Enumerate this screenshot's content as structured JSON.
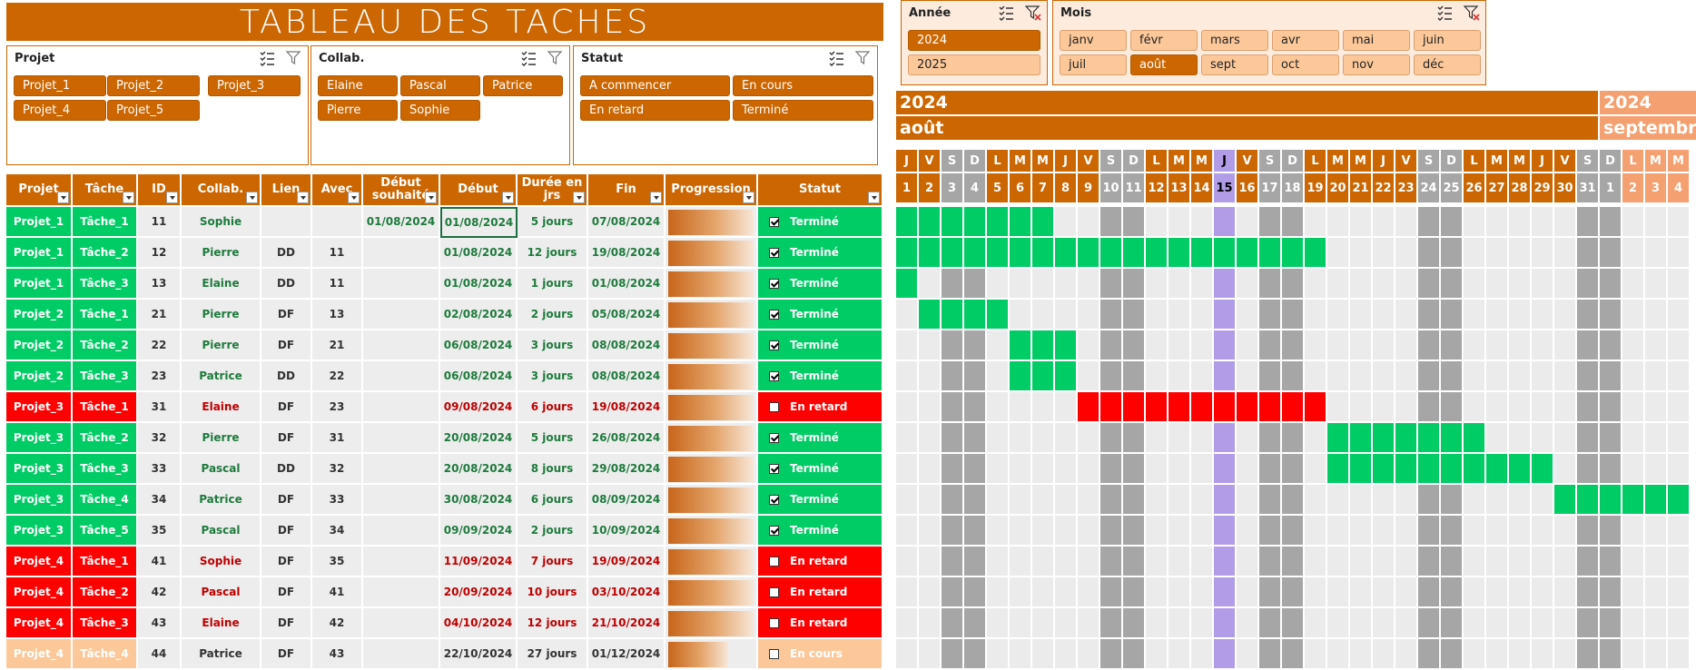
{
  "title": "TABLEAU  DES  TACHES",
  "slicers": {
    "projet": {
      "label": "Projet",
      "items": [
        "Projet_1",
        "Projet_2",
        "Projet_3",
        "Projet_4",
        "Projet_5"
      ]
    },
    "collab": {
      "label": "Collab.",
      "items": [
        "Elaine",
        "Pascal",
        "Patrice",
        "Pierre",
        "Sophie"
      ]
    },
    "statut": {
      "label": "Statut",
      "items": [
        "A commencer",
        "En cours",
        "En retard",
        "Terminé"
      ]
    },
    "annee": {
      "label": "Année",
      "items": [
        "2024",
        "2025"
      ],
      "selected": "2024"
    },
    "mois": {
      "label": "Mois",
      "items": [
        "janv",
        "févr",
        "mars",
        "avr",
        "mai",
        "juin",
        "juil",
        "août",
        "sept",
        "oct",
        "nov",
        "déc"
      ],
      "selected": "août"
    }
  },
  "table": {
    "headers": {
      "projet": "Projet",
      "tache": "Tâche",
      "id": "ID",
      "collab": "Collab.",
      "lien": "Lien",
      "avec": "Avec",
      "debut_souhaite": "Début souhaité",
      "debut": "Début",
      "duree": "Durée en jrs",
      "fin": "Fin",
      "progression": "Progression",
      "statut": "Statut"
    },
    "rows": [
      {
        "projet": "Projet_1",
        "tache": "Tâche_1",
        "id": "11",
        "collab": "Sophie",
        "lien": "",
        "avec": "",
        "debut_souhaite": "01/08/2024",
        "debut": "01/08/2024",
        "duree": "5 jours",
        "fin": "07/08/2024",
        "progress": 1.0,
        "done": true,
        "statut": "Terminé",
        "kind": "ok"
      },
      {
        "projet": "Projet_1",
        "tache": "Tâche_2",
        "id": "12",
        "collab": "Pierre",
        "lien": "DD",
        "avec": "11",
        "debut_souhaite": "",
        "debut": "01/08/2024",
        "duree": "12 jours",
        "fin": "19/08/2024",
        "progress": 1.0,
        "done": true,
        "statut": "Terminé",
        "kind": "ok"
      },
      {
        "projet": "Projet_1",
        "tache": "Tâche_3",
        "id": "13",
        "collab": "Elaine",
        "lien": "DD",
        "avec": "11",
        "debut_souhaite": "",
        "debut": "01/08/2024",
        "duree": "1 jours",
        "fin": "01/08/2024",
        "progress": 1.0,
        "done": true,
        "statut": "Terminé",
        "kind": "ok"
      },
      {
        "projet": "Projet_2",
        "tache": "Tâche_1",
        "id": "21",
        "collab": "Pierre",
        "lien": "DF",
        "avec": "13",
        "debut_souhaite": "",
        "debut": "02/08/2024",
        "duree": "2 jours",
        "fin": "05/08/2024",
        "progress": 1.0,
        "done": true,
        "statut": "Terminé",
        "kind": "ok"
      },
      {
        "projet": "Projet_2",
        "tache": "Tâche_2",
        "id": "22",
        "collab": "Pierre",
        "lien": "DF",
        "avec": "21",
        "debut_souhaite": "",
        "debut": "06/08/2024",
        "duree": "3 jours",
        "fin": "08/08/2024",
        "progress": 1.0,
        "done": true,
        "statut": "Terminé",
        "kind": "ok"
      },
      {
        "projet": "Projet_2",
        "tache": "Tâche_3",
        "id": "23",
        "collab": "Patrice",
        "lien": "DD",
        "avec": "22",
        "debut_souhaite": "",
        "debut": "06/08/2024",
        "duree": "3 jours",
        "fin": "08/08/2024",
        "progress": 1.0,
        "done": true,
        "statut": "Terminé",
        "kind": "ok"
      },
      {
        "projet": "Projet_3",
        "tache": "Tâche_1",
        "id": "31",
        "collab": "Elaine",
        "lien": "DF",
        "avec": "23",
        "debut_souhaite": "",
        "debut": "09/08/2024",
        "duree": "6 jours",
        "fin": "19/08/2024",
        "progress": 1.0,
        "done": false,
        "statut": "En retard",
        "kind": "late"
      },
      {
        "projet": "Projet_3",
        "tache": "Tâche_2",
        "id": "32",
        "collab": "Pierre",
        "lien": "DF",
        "avec": "31",
        "debut_souhaite": "",
        "debut": "20/08/2024",
        "duree": "5 jours",
        "fin": "26/08/2024",
        "progress": 1.0,
        "done": true,
        "statut": "Terminé",
        "kind": "ok"
      },
      {
        "projet": "Projet_3",
        "tache": "Tâche_3",
        "id": "33",
        "collab": "Pascal",
        "lien": "DD",
        "avec": "32",
        "debut_souhaite": "",
        "debut": "20/08/2024",
        "duree": "8 jours",
        "fin": "29/08/2024",
        "progress": 1.0,
        "done": true,
        "statut": "Terminé",
        "kind": "ok"
      },
      {
        "projet": "Projet_3",
        "tache": "Tâche_4",
        "id": "34",
        "collab": "Patrice",
        "lien": "DF",
        "avec": "33",
        "debut_souhaite": "",
        "debut": "30/08/2024",
        "duree": "6 jours",
        "fin": "08/09/2024",
        "progress": 1.0,
        "done": true,
        "statut": "Terminé",
        "kind": "ok"
      },
      {
        "projet": "Projet_3",
        "tache": "Tâche_5",
        "id": "35",
        "collab": "Pascal",
        "lien": "DF",
        "avec": "34",
        "debut_souhaite": "",
        "debut": "09/09/2024",
        "duree": "2 jours",
        "fin": "10/09/2024",
        "progress": 1.0,
        "done": true,
        "statut": "Terminé",
        "kind": "ok"
      },
      {
        "projet": "Projet_4",
        "tache": "Tâche_1",
        "id": "41",
        "collab": "Sophie",
        "lien": "DF",
        "avec": "35",
        "debut_souhaite": "",
        "debut": "11/09/2024",
        "duree": "7 jours",
        "fin": "19/09/2024",
        "progress": 1.0,
        "done": false,
        "statut": "En retard",
        "kind": "late"
      },
      {
        "projet": "Projet_4",
        "tache": "Tâche_2",
        "id": "42",
        "collab": "Pascal",
        "lien": "DF",
        "avec": "41",
        "debut_souhaite": "",
        "debut": "20/09/2024",
        "duree": "10 jours",
        "fin": "03/10/2024",
        "progress": 1.0,
        "done": false,
        "statut": "En retard",
        "kind": "late"
      },
      {
        "projet": "Projet_4",
        "tache": "Tâche_3",
        "id": "43",
        "collab": "Elaine",
        "lien": "DF",
        "avec": "42",
        "debut_souhaite": "",
        "debut": "04/10/2024",
        "duree": "12 jours",
        "fin": "21/10/2024",
        "progress": 1.0,
        "done": false,
        "statut": "En retard",
        "kind": "late"
      },
      {
        "projet": "Projet_4",
        "tache": "Tâche_4",
        "id": "44",
        "collab": "Patrice",
        "lien": "DF",
        "avec": "43",
        "debut_souhaite": "",
        "debut": "22/10/2024",
        "duree": "27 jours",
        "fin": "01/12/2024",
        "progress": 0.7,
        "done": false,
        "statut": "En cours",
        "kind": "current"
      }
    ]
  },
  "gantt": {
    "year_label_aug": "2024",
    "month_label_aug": "août",
    "year_label_sep": "2024",
    "month_label_sep": "septembre",
    "day_letters": [
      "J",
      "V",
      "S",
      "D",
      "L",
      "M",
      "M",
      "J",
      "V",
      "S",
      "D",
      "L",
      "M",
      "M",
      "J",
      "V",
      "S",
      "D",
      "L",
      "M",
      "M",
      "J",
      "V",
      "S",
      "D",
      "L",
      "M",
      "M",
      "J",
      "V",
      "S",
      "D",
      "L",
      "M",
      "M"
    ],
    "day_numbers": [
      "1",
      "2",
      "3",
      "4",
      "5",
      "6",
      "7",
      "8",
      "9",
      "10",
      "11",
      "12",
      "13",
      "14",
      "15",
      "16",
      "17",
      "18",
      "19",
      "20",
      "21",
      "22",
      "23",
      "24",
      "25",
      "26",
      "27",
      "28",
      "29",
      "30",
      "31",
      "1",
      "2",
      "3",
      "4"
    ],
    "today_index": 14,
    "bars": [
      {
        "start": 0,
        "end": 6,
        "kind": "ok"
      },
      {
        "start": 0,
        "end": 18,
        "kind": "ok"
      },
      {
        "start": 0,
        "end": 0,
        "kind": "ok"
      },
      {
        "start": 1,
        "end": 4,
        "kind": "ok"
      },
      {
        "start": 5,
        "end": 7,
        "kind": "ok"
      },
      {
        "start": 5,
        "end": 7,
        "kind": "ok"
      },
      {
        "start": 8,
        "end": 18,
        "kind": "late"
      },
      {
        "start": 19,
        "end": 25,
        "kind": "ok"
      },
      {
        "start": 19,
        "end": 28,
        "kind": "ok"
      },
      {
        "start": 29,
        "end": 34,
        "kind": "ok"
      },
      {
        "start": -1,
        "end": -1,
        "kind": "ok"
      },
      {
        "start": -1,
        "end": -1,
        "kind": "ok"
      },
      {
        "start": -1,
        "end": -1,
        "kind": "ok"
      },
      {
        "start": -1,
        "end": -1,
        "kind": "ok"
      },
      {
        "start": -1,
        "end": -1,
        "kind": "ok"
      }
    ]
  },
  "colors": {
    "accent": "#CC6600",
    "peach": "#FCC89A",
    "green": "#00CC66",
    "red": "#FF0000",
    "grey_weekend": "#A6A6A6",
    "grey_cell": "#E8E8E8",
    "today": "#B19CE8",
    "dark_green_text": "#1E7B3C"
  }
}
